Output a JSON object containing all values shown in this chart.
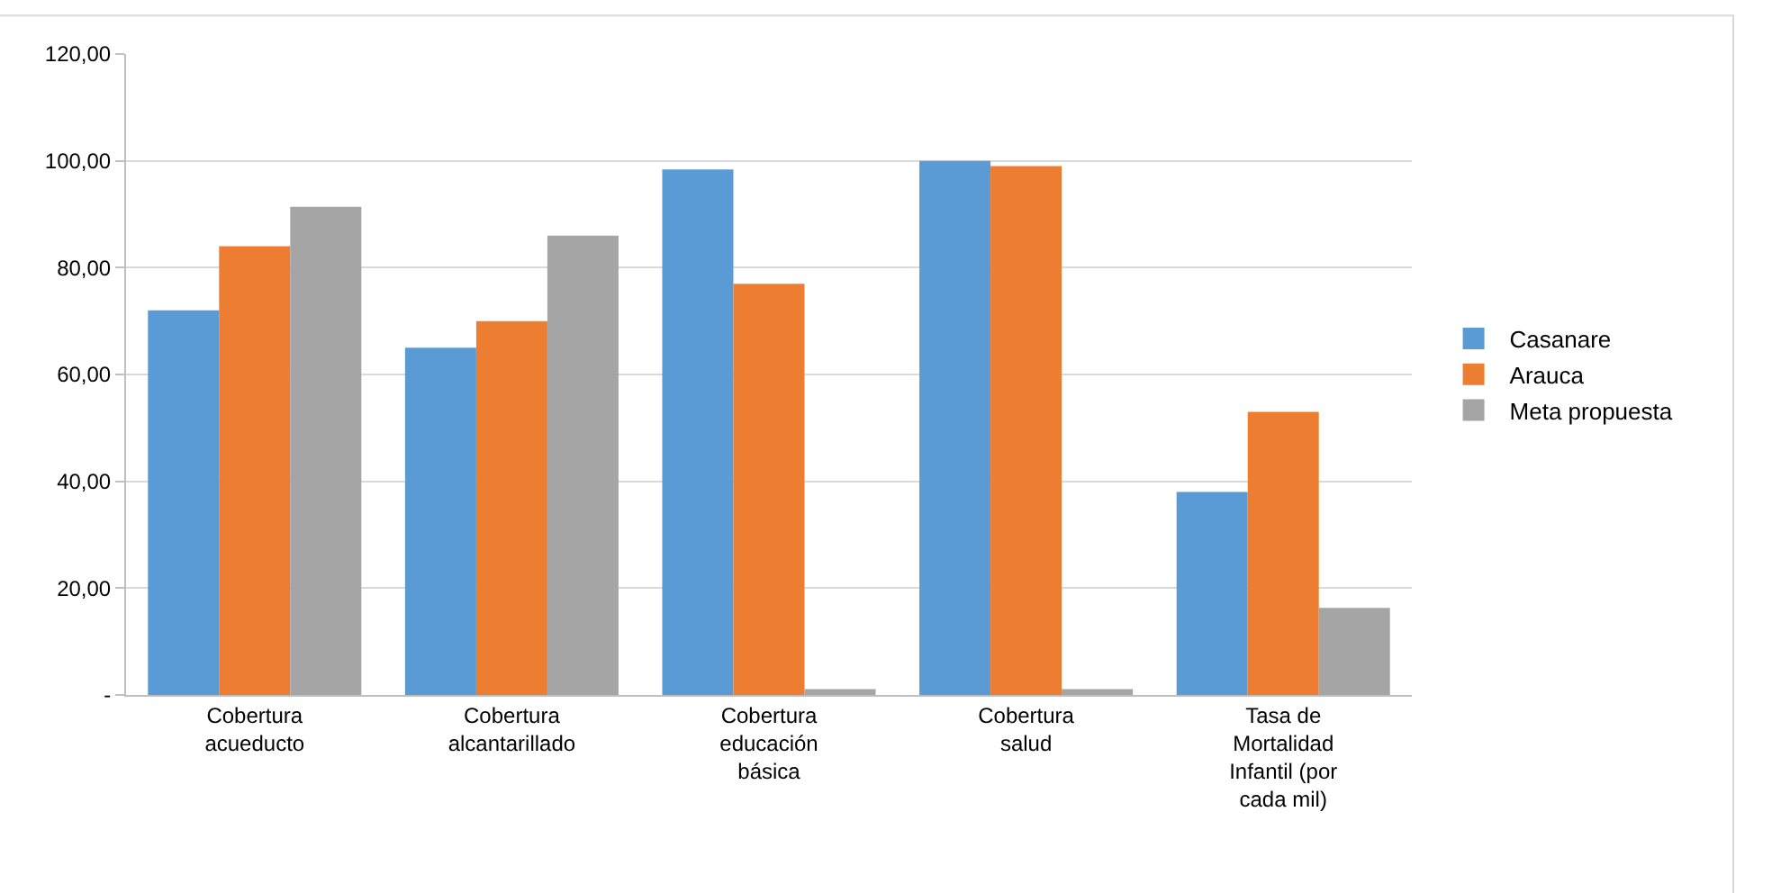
{
  "chart_data": {
    "type": "bar",
    "categories": [
      "Cobertura acueducto",
      "Cobertura alcantarillado",
      "Cobertura educación básica",
      "Cobertura salud",
      "Tasa de Mortalidad Infantil (por cada mil)"
    ],
    "series": [
      {
        "name": "Casanare",
        "color": "#5b9bd5",
        "values": [
          72,
          65,
          98.4,
          100,
          38
        ]
      },
      {
        "name": "Arauca",
        "color": "#ed7d31",
        "values": [
          84,
          70,
          77,
          99,
          53
        ]
      },
      {
        "name": "Meta propuesta",
        "color": "#a5a5a5",
        "values": [
          91.4,
          86,
          1.1,
          1.1,
          16.3
        ]
      }
    ],
    "ylim": [
      0,
      120
    ],
    "yticks": [
      {
        "value": 0,
        "label": "-"
      },
      {
        "value": 20,
        "label": "20,00"
      },
      {
        "value": 40,
        "label": "40,00"
      },
      {
        "value": 60,
        "label": "60,00"
      },
      {
        "value": 80,
        "label": "80,00"
      },
      {
        "value": 100,
        "label": "100,00"
      },
      {
        "value": 120,
        "label": "120,00"
      }
    ],
    "grid": "y",
    "legend": "right"
  }
}
